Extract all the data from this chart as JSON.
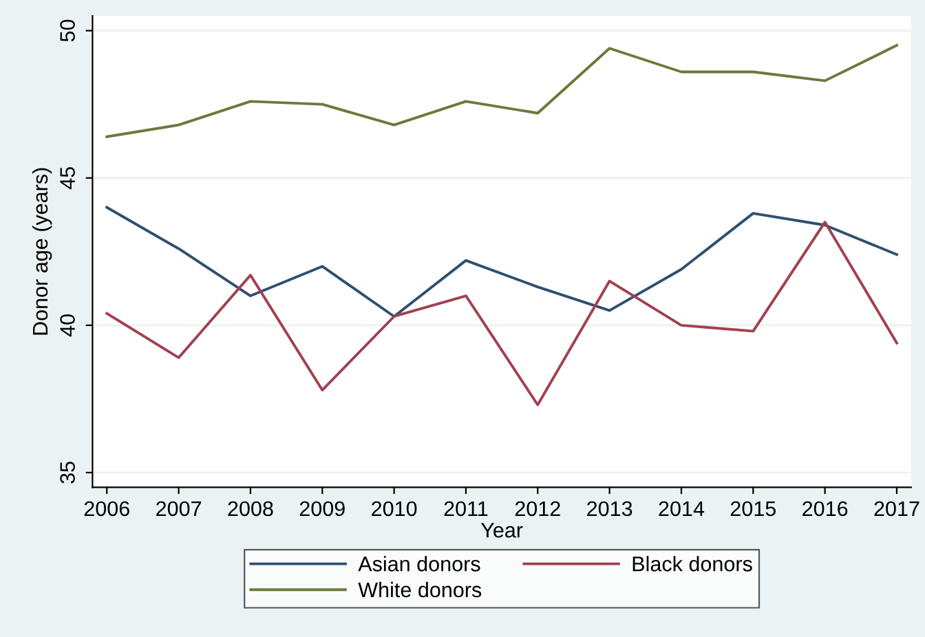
{
  "chart_data": {
    "type": "line",
    "xlabel": "Year",
    "ylabel": "Donor age (years)",
    "x": [
      2006,
      2007,
      2008,
      2009,
      2010,
      2011,
      2012,
      2013,
      2014,
      2015,
      2016,
      2017
    ],
    "series": [
      {
        "name": "Asian donors",
        "color": "#2f4f6f",
        "values": [
          44.0,
          42.6,
          41.0,
          42.0,
          40.3,
          42.2,
          41.3,
          40.5,
          41.9,
          43.8,
          43.4,
          42.4
        ]
      },
      {
        "name": "Black donors",
        "color": "#a0414f",
        "values": [
          40.4,
          38.9,
          41.7,
          37.8,
          40.3,
          41.0,
          37.3,
          41.5,
          40.0,
          39.8,
          43.5,
          39.4
        ]
      },
      {
        "name": "White donors",
        "color": "#6a7a3a",
        "values": [
          46.4,
          46.8,
          47.6,
          47.5,
          46.8,
          47.6,
          47.2,
          49.4,
          48.6,
          48.6,
          48.3,
          49.5
        ]
      }
    ],
    "xlim": [
      2005.8,
      2017.2
    ],
    "ylim": [
      34.5,
      50.5
    ],
    "xticks": [
      2006,
      2007,
      2008,
      2009,
      2010,
      2011,
      2012,
      2013,
      2014,
      2015,
      2016,
      2017
    ],
    "yticks": [
      35,
      40,
      45,
      50
    ],
    "grid": "y",
    "legend": "bottom",
    "marker": "none",
    "line_style": "solid"
  }
}
